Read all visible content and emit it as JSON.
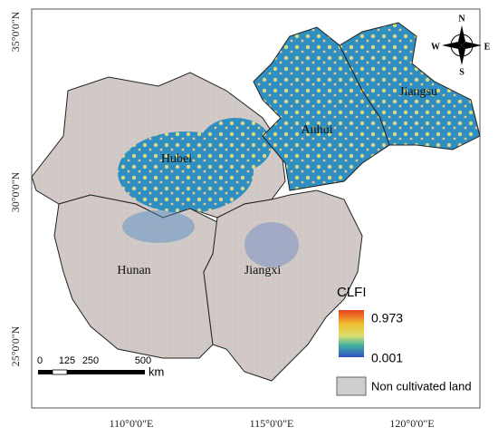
{
  "map": {
    "lat_labels": [
      "35°0'0\"N",
      "30°0'0\"N",
      "25°0'0\"N"
    ],
    "lon_labels": [
      "110°0'0\"E",
      "115°0'0\"E",
      "120°0'0\"E"
    ],
    "regions": [
      "Hubei",
      "Anhui",
      "Jiangsu",
      "Hunan",
      "Jiangxi"
    ],
    "compass": {
      "n": "N",
      "e": "E",
      "s": "S",
      "w": "W"
    },
    "legend": {
      "title": "CLFI",
      "max": "0.973",
      "min": "0.001",
      "non_cultivated": "Non cultivated land"
    },
    "scale": {
      "ticks": [
        0,
        125,
        250,
        500
      ],
      "unit": "km"
    }
  }
}
